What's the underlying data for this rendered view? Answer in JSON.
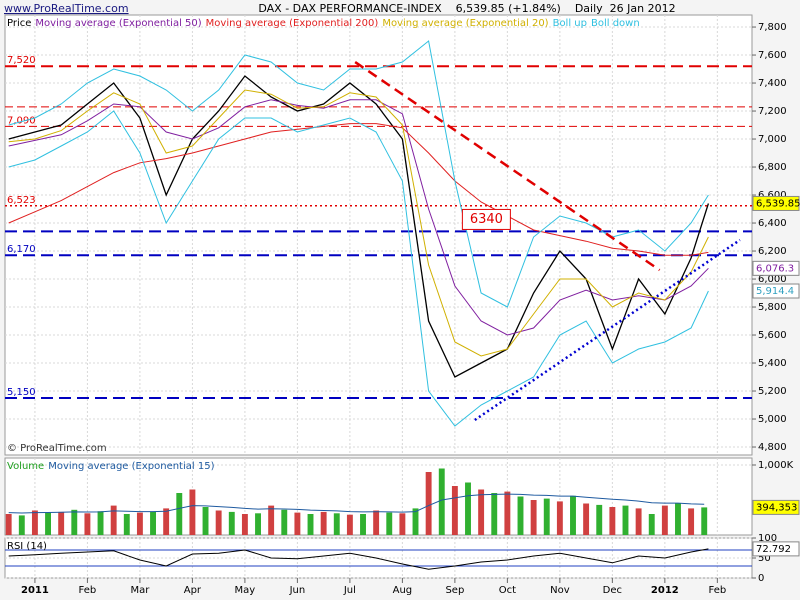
{
  "header": {
    "site": "www.ProRealTime.com",
    "title": "DAX - DAX PERFORMANCE-INDEX    6,539.85 (+1.84%)    Daily  26 Jan 2012"
  },
  "chart_data": [
    {
      "type": "line",
      "footer": "© ProRealTime.com",
      "x": [
        -0.5,
        0,
        0.5,
        1,
        1.5,
        2,
        2.5,
        3,
        3.5,
        4,
        4.5,
        5,
        5.5,
        6,
        6.5,
        7,
        7.5,
        8,
        8.5,
        9,
        9.5,
        10,
        10.5,
        11,
        11.5,
        12,
        12.5,
        12.83
      ],
      "series": [
        {
          "name": "Price",
          "color": "#000000",
          "width": 1.3,
          "values": [
            7000,
            7050,
            7100,
            7250,
            7400,
            7150,
            6600,
            7000,
            7200,
            7450,
            7300,
            7200,
            7250,
            7400,
            7250,
            7000,
            5700,
            5300,
            5400,
            5500,
            5900,
            6200,
            6000,
            5500,
            6000,
            5750,
            6150,
            6539.85
          ]
        },
        {
          "name": "Moving average (Exponential 50)",
          "color": "#8020a0",
          "width": 1,
          "values": [
            6950,
            6990,
            7030,
            7130,
            7250,
            7230,
            7050,
            7000,
            7080,
            7230,
            7280,
            7240,
            7220,
            7280,
            7280,
            7180,
            6500,
            5950,
            5700,
            5600,
            5650,
            5850,
            5920,
            5850,
            5880,
            5850,
            5950,
            6076.3
          ]
        },
        {
          "name": "Moving average (Exponential 200)",
          "color": "#e02020",
          "width": 1,
          "values": [
            6400,
            6480,
            6560,
            6660,
            6760,
            6830,
            6860,
            6900,
            6950,
            7000,
            7050,
            7070,
            7090,
            7110,
            7110,
            7080,
            6900,
            6700,
            6550,
            6450,
            6350,
            6310,
            6270,
            6220,
            6200,
            6170,
            6170,
            6190
          ]
        },
        {
          "name": "Moving average (Exponential 20)",
          "color": "#d0b000",
          "width": 1,
          "values": [
            6980,
            7000,
            7060,
            7200,
            7330,
            7250,
            6900,
            6950,
            7150,
            7350,
            7320,
            7220,
            7230,
            7330,
            7300,
            7100,
            6100,
            5550,
            5450,
            5500,
            5750,
            6000,
            6000,
            5800,
            5900,
            5850,
            6050,
            6300
          ]
        },
        {
          "name": "Boll up",
          "color": "#30c0e0",
          "width": 1,
          "values": [
            7100,
            7150,
            7250,
            7400,
            7500,
            7450,
            7350,
            7200,
            7350,
            7600,
            7550,
            7400,
            7350,
            7500,
            7500,
            7550,
            7700,
            6700,
            5900,
            5800,
            6300,
            6450,
            6400,
            6300,
            6350,
            6200,
            6400,
            6600
          ]
        },
        {
          "name": "Boll down",
          "color": "#30c0e0",
          "width": 1,
          "values": [
            6800,
            6850,
            6950,
            7050,
            7200,
            6900,
            6400,
            6700,
            7000,
            7150,
            7150,
            7050,
            7100,
            7150,
            7050,
            6700,
            5200,
            4950,
            5100,
            5200,
            5300,
            5600,
            5700,
            5400,
            5500,
            5550,
            5650,
            5914.4
          ]
        }
      ],
      "xlim": [
        -0.57,
        13.66
      ],
      "ylim": [
        4743,
        7886
      ],
      "yticks": [
        {
          "value": 4800,
          "label": "4,800"
        },
        {
          "value": 5000,
          "label": "5,000"
        },
        {
          "value": 5200,
          "label": "5,200"
        },
        {
          "value": 5400,
          "label": "5,400"
        },
        {
          "value": 5600,
          "label": "5,600"
        },
        {
          "value": 5800,
          "label": "5,800"
        },
        {
          "value": 6000,
          "label": "6,000"
        },
        {
          "value": 6200,
          "label": "6,200"
        },
        {
          "value": 6400,
          "label": "6,400"
        },
        {
          "value": 6600,
          "label": "6,600"
        },
        {
          "value": 6800,
          "label": "6,800"
        },
        {
          "value": 7000,
          "label": "7,000"
        },
        {
          "value": 7200,
          "label": "7,200"
        },
        {
          "value": 7400,
          "label": "7,400"
        },
        {
          "value": 7600,
          "label": "7,600"
        },
        {
          "value": 7800,
          "label": "7,800"
        }
      ],
      "grid": true,
      "levels": [
        {
          "value": 7520,
          "label": "7,520",
          "color": "#e00000",
          "dash": "12 6",
          "width": 2
        },
        {
          "value": 7230,
          "color": "#e00000",
          "dash": "8 4",
          "width": 1
        },
        {
          "value": 7090,
          "label": "7,090",
          "color": "#e00000",
          "dash": "8 4",
          "width": 1
        },
        {
          "value": 6523,
          "label": "6,523",
          "color": "#e00000",
          "dash": "2 3",
          "width": 1.5
        },
        {
          "value": 6340,
          "color": "#0000c0",
          "dash": "12 6",
          "width": 2
        },
        {
          "value": 6170,
          "label": "6,170",
          "color": "#0000c0",
          "dash": "12 6",
          "width": 2
        },
        {
          "value": 5150,
          "label": "5,150",
          "color": "#0000c0",
          "dash": "12 6",
          "width": 2
        }
      ],
      "trendlines": [
        {
          "x": [
            6.1,
            11.9
          ],
          "y": [
            7550,
            6064
          ],
          "color": "#e00000",
          "dash": "10 6",
          "width": 2.5
        },
        {
          "x": [
            8.38,
            13.43
          ],
          "y": [
            4993,
            6279
          ],
          "color": "#0000d0",
          "dash": "2 3",
          "width": 2.5
        }
      ],
      "annotations": [
        {
          "text": "6340",
          "x": 8.6,
          "y": 6340,
          "color": "#e00000"
        }
      ],
      "tags": [
        {
          "value": 6539.85,
          "label": "6,539.85",
          "color": "#ffff00",
          "text_color": "#000000"
        },
        {
          "value": 6076.3,
          "label": "6,076.3",
          "color": "#ffffff",
          "text_color": "#8020a0"
        },
        {
          "value": 5914.4,
          "label": "5,914.4",
          "color": "#ffffff",
          "text_color": "#30a0c0"
        }
      ]
    },
    {
      "type": "bar",
      "x": [
        -0.5,
        -0.25,
        0,
        0.25,
        0.5,
        0.75,
        1,
        1.25,
        1.5,
        1.75,
        2,
        2.25,
        2.5,
        2.75,
        3,
        3.25,
        3.5,
        3.75,
        4,
        4.25,
        4.5,
        4.75,
        5,
        5.25,
        5.5,
        5.75,
        6,
        6.25,
        6.5,
        6.75,
        7,
        7.25,
        7.5,
        7.75,
        8,
        8.25,
        8.5,
        8.75,
        9,
        9.25,
        9.5,
        9.75,
        10,
        10.25,
        10.5,
        10.75,
        11,
        11.25,
        11.5,
        11.75,
        12,
        12.25,
        12.5,
        12.75
      ],
      "series": [
        {
          "name": "Volume",
          "colors": [
            "#d04040",
            "#30b030"
          ],
          "color": "#20a020",
          "values": [
            300000,
            280000,
            350000,
            320000,
            330000,
            360000,
            310000,
            340000,
            420000,
            300000,
            320000,
            330000,
            380000,
            600000,
            650000,
            400000,
            350000,
            330000,
            300000,
            310000,
            420000,
            360000,
            320000,
            300000,
            330000,
            310000,
            290000,
            300000,
            350000,
            320000,
            310000,
            380000,
            900000,
            950000,
            700000,
            750000,
            650000,
            600000,
            620000,
            550000,
            500000,
            520000,
            480000,
            560000,
            450000,
            430000,
            400000,
            420000,
            380000,
            300000,
            420000,
            450000,
            380000,
            394353
          ]
        },
        {
          "name": "Moving average (Exponential 15)",
          "type": "line",
          "color": "#1e5aa0",
          "values": [
            320000,
            315000,
            320000,
            322000,
            324000,
            330000,
            328000,
            330000,
            345000,
            340000,
            335000,
            334000,
            340000,
            380000,
            420000,
            415000,
            405000,
            395000,
            380000,
            370000,
            375000,
            372000,
            365000,
            355000,
            350000,
            345000,
            335000,
            330000,
            333000,
            330000,
            327000,
            335000,
            420000,
            500000,
            530000,
            560000,
            575000,
            580000,
            585000,
            580000,
            570000,
            565000,
            555000,
            555000,
            540000,
            525000,
            510000,
            500000,
            485000,
            460000,
            455000,
            455000,
            445000,
            440000
          ]
        }
      ],
      "xlim": [
        -0.57,
        13.66
      ],
      "ylim": [
        0,
        1100000
      ],
      "yticks": [
        {
          "value": 1000000,
          "label": "1,000K"
        }
      ],
      "grid": true,
      "tags": [
        {
          "value": 394353,
          "label": "394,353",
          "color": "#ffff00",
          "text_color": "#000000"
        }
      ]
    },
    {
      "type": "line",
      "x": [
        -0.5,
        0,
        0.5,
        1,
        1.5,
        2,
        2.5,
        3,
        3.5,
        4,
        4.5,
        5,
        5.5,
        6,
        6.5,
        7,
        7.5,
        8,
        8.5,
        9,
        9.5,
        10,
        10.5,
        11,
        11.5,
        12,
        12.5,
        12.83
      ],
      "series": [
        {
          "name": "RSI (14)",
          "color": "#000000",
          "width": 1,
          "values": [
            55,
            58,
            62,
            65,
            68,
            45,
            30,
            60,
            62,
            70,
            50,
            48,
            55,
            62,
            50,
            35,
            22,
            30,
            40,
            45,
            55,
            62,
            50,
            38,
            55,
            50,
            65,
            72.792
          ]
        }
      ],
      "xlim": [
        -0.57,
        13.66
      ],
      "ylim": [
        0,
        100
      ],
      "yticks": [
        0,
        50,
        100
      ],
      "xticks": [
        {
          "value": 0,
          "label": "2011"
        },
        {
          "value": 1,
          "label": "Feb"
        },
        {
          "value": 2,
          "label": "Mar"
        },
        {
          "value": 3,
          "label": "Apr"
        },
        {
          "value": 4,
          "label": "May"
        },
        {
          "value": 5,
          "label": "Jun"
        },
        {
          "value": 6,
          "label": "Jul"
        },
        {
          "value": 7,
          "label": "Aug"
        },
        {
          "value": 8,
          "label": "Sep"
        },
        {
          "value": 9,
          "label": "Oct"
        },
        {
          "value": 10,
          "label": "Nov"
        },
        {
          "value": 11,
          "label": "Dec"
        },
        {
          "value": 12,
          "label": "2012"
        },
        {
          "value": 13,
          "label": "Feb"
        }
      ],
      "grid": true,
      "levels": [
        {
          "value": 70,
          "color": "#2040c0",
          "dash": "",
          "width": 1
        },
        {
          "value": 30,
          "color": "#2040c0",
          "dash": "",
          "width": 1
        }
      ],
      "tags": [
        {
          "value": 72.792,
          "label": "72.792",
          "color": "#ffffff",
          "text_color": "#000000"
        }
      ]
    }
  ]
}
